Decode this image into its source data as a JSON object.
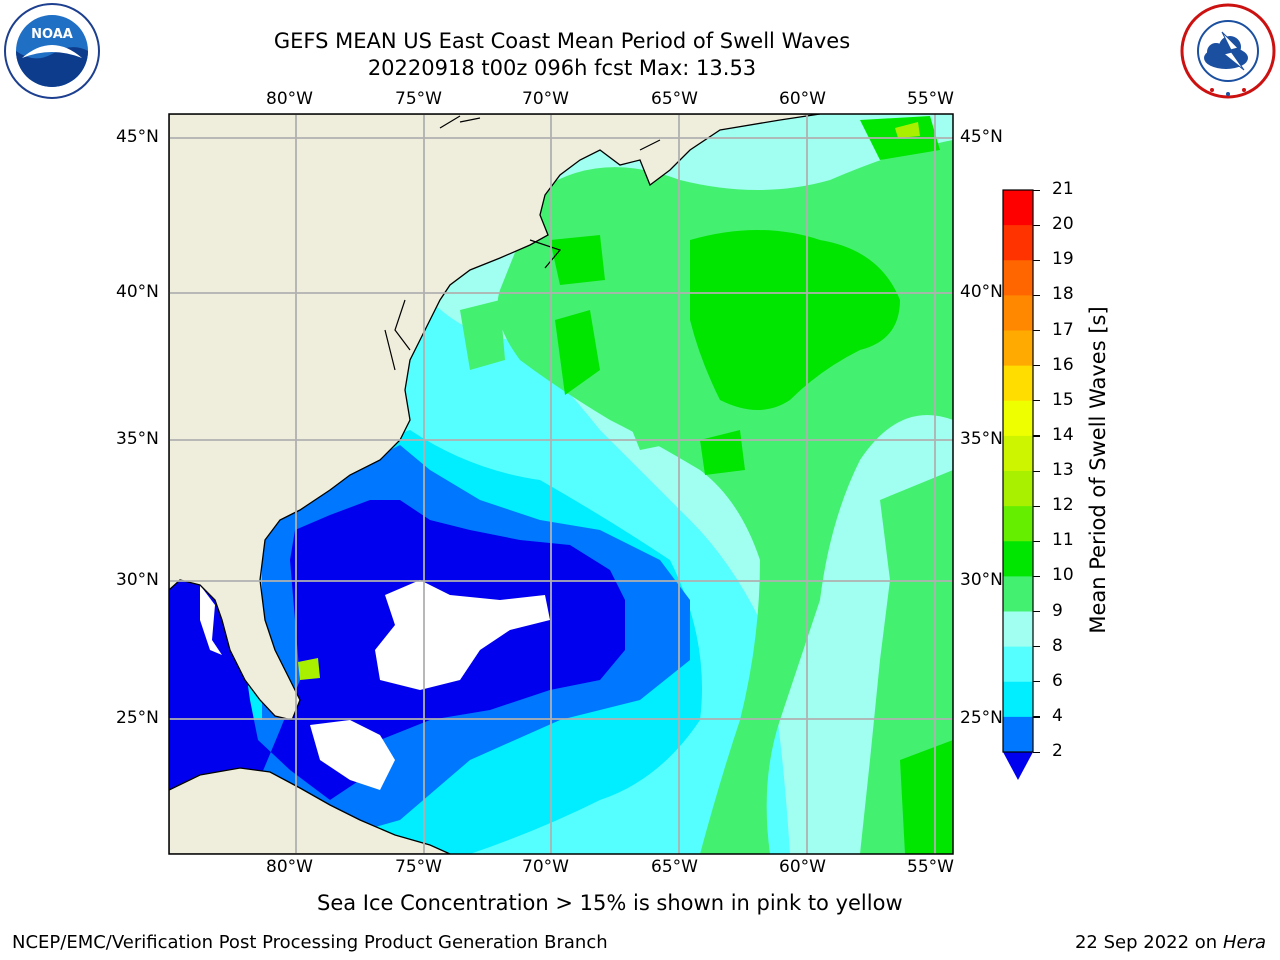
{
  "header": {
    "title_line1": "GEFS MEAN US East Coast Mean Period of Swell Waves",
    "title_line2": "20220918 t00z 096h fcst   Max: 13.53"
  },
  "logos": {
    "noaa": "NOAA",
    "nws": "NATIONAL WEATHER SERVICE"
  },
  "map": {
    "lon_labels": [
      "80°W",
      "75°W",
      "70°W",
      "65°W",
      "60°W",
      "55°W"
    ],
    "lat_labels": [
      "45°N",
      "40°N",
      "35°N",
      "30°N",
      "25°N"
    ],
    "land_color": "#efeddc",
    "grid_color": "#b0b0b0"
  },
  "colorbar": {
    "label": "Mean Period of Swell Waves [s]",
    "ticks": [
      "21",
      "20",
      "19",
      "18",
      "17",
      "16",
      "15",
      "14",
      "13",
      "12",
      "11",
      "10",
      "9",
      "8",
      "6",
      "4",
      "2"
    ],
    "colors_top_to_bottom": [
      "#ff0000",
      "#ff3300",
      "#ff6600",
      "#ff8800",
      "#ffaa00",
      "#ffdd00",
      "#eeff00",
      "#cdf500",
      "#a8f000",
      "#66ee00",
      "#00e600",
      "#44f070",
      "#a0fff0",
      "#55ffff",
      "#00eeff",
      "#0077ff"
    ],
    "extend_color": "#0000ee"
  },
  "notes": {
    "sea_ice": "Sea Ice Concentration > 15% is shown in pink to yellow"
  },
  "footer": {
    "left": "NCEP/EMC/Verification Post Processing Product Generation Branch",
    "date": "22 Sep 2022 on",
    "machine": "Hera"
  }
}
